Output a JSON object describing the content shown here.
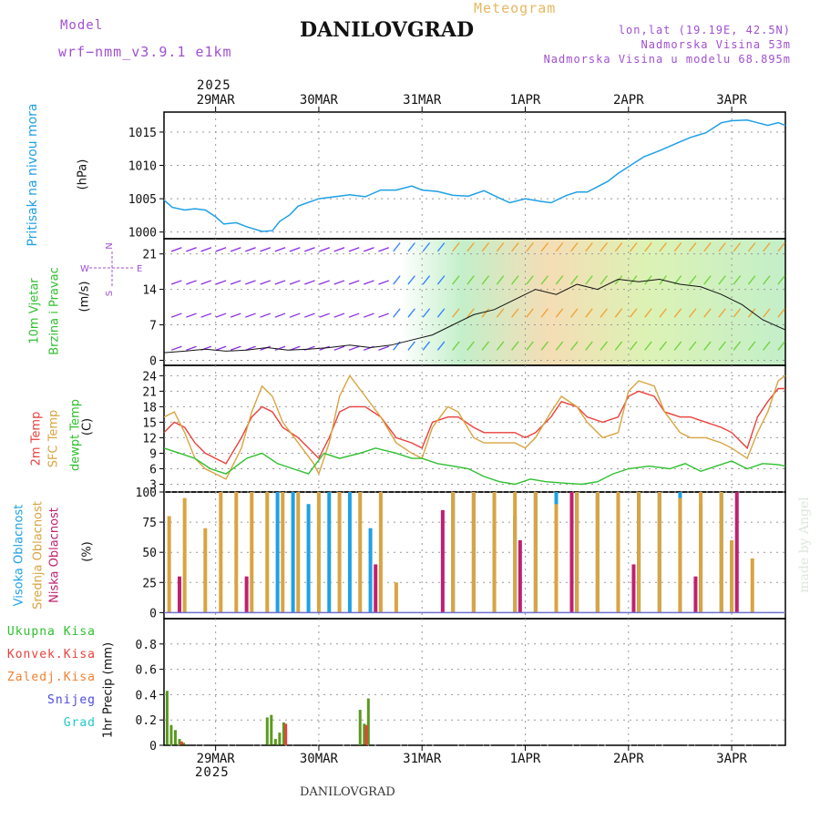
{
  "header": {
    "model_label": "Model",
    "model_name": "wrf−nmm_v3.9.1 e1km",
    "station": "DANILOVGRAD",
    "meteogram": "Meteogram",
    "coords": "lon,lat (19.19E, 42.5N)",
    "elevation": "Nadmorska Visina 53m",
    "model_elevation": "Nadmorska Visina u modelu 68.895m",
    "footer_station": "DANILOVGRAD",
    "credit": "made by Angel"
  },
  "colors": {
    "pressure": "#1ea0e6",
    "temp2m": "#e8413c",
    "sfc_temp": "#d9a441",
    "dewpt": "#2ec02e",
    "high_cloud": "#1ea0e6",
    "mid_cloud": "#d9a441",
    "low_cloud": "#c02070",
    "total_precip": "#5a9a1e",
    "convective": "#e8413c",
    "purple": "#a050d0"
  },
  "chart_data": {
    "type": "line",
    "x_axis": {
      "year": "2025",
      "date_labels": [
        "29MAR",
        "30MAR",
        "31MAR",
        "1APR",
        "2APR",
        "3APR"
      ],
      "span_days": [
        -0.5,
        5.52
      ]
    },
    "panels": [
      {
        "id": "pressure",
        "ylabel": [
          "Pritisak na nivou mora",
          "(hPa)"
        ],
        "ylim": [
          999,
          1018
        ],
        "yticks": [
          1000,
          1005,
          1010,
          1015
        ],
        "series": [
          {
            "name": "Pritisak na nivou mora",
            "x": [
              -0.5,
              -0.42,
              -0.3,
              -0.2,
              -0.1,
              0,
              0.08,
              0.2,
              0.3,
              0.45,
              0.55,
              0.62,
              0.72,
              0.8,
              1.0,
              1.2,
              1.3,
              1.45,
              1.6,
              1.75,
              1.9,
              2.0,
              2.15,
              2.3,
              2.45,
              2.6,
              2.75,
              2.85,
              3.0,
              3.15,
              3.25,
              3.4,
              3.5,
              3.6,
              3.7,
              3.8,
              3.9,
              4.0,
              4.15,
              4.3,
              4.45,
              4.6,
              4.75,
              4.9,
              5.0,
              5.15,
              5.25,
              5.35,
              5.45,
              5.52
            ],
            "y": [
              1004.8,
              1003.7,
              1003.3,
              1003.5,
              1003.3,
              1002.3,
              1001.2,
              1001.4,
              1000.8,
              1000.1,
              1000.2,
              1001.6,
              1002.6,
              1003.9,
              1005.0,
              1005.4,
              1005.6,
              1005.3,
              1006.3,
              1006.3,
              1006.9,
              1006.3,
              1006.1,
              1005.5,
              1005.4,
              1006.2,
              1005.1,
              1004.4,
              1005.0,
              1004.6,
              1004.4,
              1005.5,
              1006.0,
              1006.0,
              1006.8,
              1007.6,
              1008.8,
              1009.8,
              1011.3,
              1012.2,
              1013.2,
              1014.2,
              1014.9,
              1016.4,
              1016.7,
              1016.8,
              1016.4,
              1016.0,
              1016.4,
              1016.0
            ]
          }
        ]
      },
      {
        "id": "wind",
        "ylabel": [
          "10m Vjetar",
          "Brzina i Pravac",
          "(m/s)"
        ],
        "compass": [
          "N",
          "W",
          "E",
          "S"
        ],
        "ylim": [
          -1,
          24
        ],
        "yticks": [
          0,
          7,
          14,
          21
        ],
        "series": [
          {
            "name": "10m Vjetar",
            "x": [
              -0.5,
              -0.3,
              -0.1,
              0.1,
              0.3,
              0.5,
              0.7,
              0.9,
              1.1,
              1.3,
              1.5,
              1.7,
              1.9,
              2.1,
              2.3,
              2.5,
              2.7,
              2.9,
              3.1,
              3.3,
              3.5,
              3.7,
              3.9,
              4.1,
              4.3,
              4.5,
              4.7,
              4.9,
              5.1,
              5.3,
              5.52
            ],
            "y": [
              1.5,
              1.8,
              2.2,
              1.8,
              2.0,
              2.5,
              2.0,
              2.2,
              2.5,
              3.0,
              2.5,
              3.0,
              4.0,
              5.0,
              7.0,
              9.0,
              10.0,
              12.0,
              14.0,
              13.0,
              15.0,
              14.0,
              16.0,
              15.5,
              16.0,
              15.0,
              14.5,
              13.0,
              11.0,
              8.0,
              6.0
            ]
          }
        ]
      },
      {
        "id": "temperature",
        "ylabel": [
          "2m Temp",
          "SFC Temp",
          "dewpt Temp",
          "(C)"
        ],
        "ylim": [
          1.5,
          26
        ],
        "yticks": [
          3,
          6,
          9,
          12,
          15,
          18,
          21,
          24
        ],
        "series": [
          {
            "name": "2m Temp",
            "x": [
              -0.5,
              -0.4,
              -0.3,
              -0.2,
              -0.1,
              0,
              0.1,
              0.25,
              0.35,
              0.45,
              0.55,
              0.65,
              0.8,
              0.95,
              1.0,
              1.1,
              1.2,
              1.3,
              1.45,
              1.6,
              1.75,
              1.9,
              2.0,
              2.1,
              2.25,
              2.35,
              2.5,
              2.6,
              2.75,
              2.9,
              3.0,
              3.1,
              3.25,
              3.35,
              3.5,
              3.6,
              3.75,
              3.9,
              4.0,
              4.1,
              4.25,
              4.35,
              4.5,
              4.6,
              4.75,
              4.9,
              5.0,
              5.15,
              5.25,
              5.35,
              5.45,
              5.52
            ],
            "y": [
              13,
              15,
              14,
              11,
              9,
              8,
              7,
              12,
              16,
              18,
              17,
              14,
              12,
              9,
              8,
              12,
              17,
              18,
              18,
              16,
              12,
              11,
              10,
              15,
              16,
              16,
              14,
              13,
              13,
              13,
              12,
              13,
              16,
              19,
              18,
              16,
              15,
              16,
              20,
              21,
              20,
              17,
              16,
              16,
              15,
              14,
              13,
              10,
              16,
              19,
              21.5,
              21.5
            ]
          },
          {
            "name": "SFC Temp",
            "x": [
              -0.5,
              -0.4,
              -0.3,
              -0.2,
              -0.1,
              0,
              0.1,
              0.25,
              0.35,
              0.45,
              0.55,
              0.65,
              0.8,
              0.95,
              1.0,
              1.1,
              1.2,
              1.3,
              1.45,
              1.6,
              1.75,
              1.9,
              2.0,
              2.1,
              2.25,
              2.35,
              2.5,
              2.6,
              2.75,
              2.9,
              3.0,
              3.1,
              3.25,
              3.35,
              3.5,
              3.6,
              3.75,
              3.9,
              4.0,
              4.1,
              4.25,
              4.35,
              4.5,
              4.6,
              4.75,
              4.9,
              5.0,
              5.15,
              5.25,
              5.35,
              5.45,
              5.52
            ],
            "y": [
              16,
              17,
              13,
              8,
              6,
              5,
              4,
              10,
              17,
              22,
              20,
              15,
              11,
              7,
              5,
              11,
              20,
              24,
              20,
              16,
              11,
              9,
              8,
              14,
              18,
              17,
              12,
              11,
              11,
              11,
              10,
              12,
              17,
              20,
              18,
              15,
              12,
              13,
              21,
              23,
              22,
              17,
              13,
              12,
              12,
              11,
              10,
              8,
              13,
              17,
              23,
              24
            ]
          },
          {
            "name": "dewpt Temp",
            "x": [
              -0.5,
              -0.35,
              -0.2,
              -0.05,
              0.1,
              0.3,
              0.45,
              0.6,
              0.75,
              0.9,
              1.05,
              1.2,
              1.4,
              1.55,
              1.75,
              1.9,
              2.0,
              2.15,
              2.3,
              2.45,
              2.6,
              2.75,
              2.9,
              3.05,
              3.2,
              3.4,
              3.55,
              3.7,
              3.85,
              4.0,
              4.2,
              4.4,
              4.55,
              4.7,
              4.85,
              5.0,
              5.15,
              5.3,
              5.45,
              5.52
            ],
            "y": [
              10,
              9,
              8,
              6,
              5,
              8,
              9,
              7,
              6,
              5,
              9,
              8,
              9,
              10,
              9,
              8,
              8,
              7,
              6.5,
              6,
              4.5,
              3.5,
              3,
              4,
              3.5,
              3.2,
              3,
              3.5,
              5,
              6,
              6.5,
              6,
              7,
              5.5,
              6.5,
              7.5,
              6,
              7,
              6.8,
              6.5
            ]
          }
        ]
      },
      {
        "id": "clouds",
        "ylabel": [
          "Visoka Oblacnost",
          "Srednja Oblacnost",
          "Niska Oblacnost",
          "(%)"
        ],
        "ylim": [
          -5,
          100
        ],
        "yticks": [
          0,
          25,
          50,
          75,
          100
        ],
        "series": [
          {
            "name": "Visoka Oblacnost",
            "x": [
              0.6,
              0.75,
              0.9,
              1.1,
              1.3,
              1.5,
              2.3,
              2.5,
              2.7,
              2.9,
              3.1,
              3.3,
              3.5,
              3.7,
              3.9,
              4.1,
              4.3,
              4.5,
              4.7,
              4.9,
              5.0
            ],
            "y": [
              100,
              100,
              90,
              100,
              100,
              70,
              100,
              100,
              95,
              80,
              100,
              100,
              100,
              100,
              95,
              100,
              100,
              100,
              90,
              100,
              60
            ]
          },
          {
            "name": "Srednja Oblacnost",
            "x": [
              -0.45,
              -0.3,
              -0.1,
              0.05,
              0.2,
              0.35,
              0.5,
              0.65,
              0.8,
              1.0,
              1.2,
              1.4,
              1.6,
              1.75,
              2.3,
              2.5,
              2.7,
              2.9,
              3.1,
              3.3,
              3.5,
              3.7,
              3.9,
              4.1,
              4.3,
              4.5,
              4.7,
              4.9,
              5.0,
              5.2
            ],
            "y": [
              80,
              95,
              70,
              100,
              100,
              100,
              100,
              100,
              100,
              100,
              100,
              100,
              100,
              25,
              100,
              100,
              100,
              100,
              100,
              90,
              100,
              100,
              100,
              100,
              100,
              95,
              100,
              100,
              60,
              45
            ]
          },
          {
            "name": "Niska Oblacnost",
            "x": [
              -0.35,
              0.3,
              1.55,
              2.2,
              2.95,
              3.45,
              4.05,
              4.65,
              5.05
            ],
            "y": [
              30,
              30,
              40,
              85,
              60,
              100,
              40,
              30,
              100
            ]
          }
        ]
      },
      {
        "id": "precip",
        "type": "bar",
        "ylabel": [
          "1hr Precip (mm)"
        ],
        "legend": [
          "Ukupna Kisa",
          "Konvek.Kisa",
          "Zaledj.Kisa",
          "Snijeg",
          "Grad"
        ],
        "ylim": [
          0,
          1.0
        ],
        "yticks": [
          0,
          0.2,
          0.4,
          0.6,
          0.8
        ],
        "series": [
          {
            "name": "Ukupna Kisa",
            "x": [
              -0.47,
              -0.43,
              -0.39,
              -0.35,
              -0.31,
              0.5,
              0.54,
              0.58,
              0.62,
              0.66,
              1.4,
              1.44,
              1.48
            ],
            "y": [
              0.43,
              0.16,
              0.12,
              0.05,
              0.02,
              0.22,
              0.24,
              0.05,
              0.1,
              0.18,
              0.28,
              0.17,
              0.37
            ]
          },
          {
            "name": "Konvek.Kisa",
            "x": [
              -0.33,
              0.68,
              1.46
            ],
            "y": [
              0.03,
              0.17,
              0.16
            ]
          }
        ]
      }
    ]
  }
}
